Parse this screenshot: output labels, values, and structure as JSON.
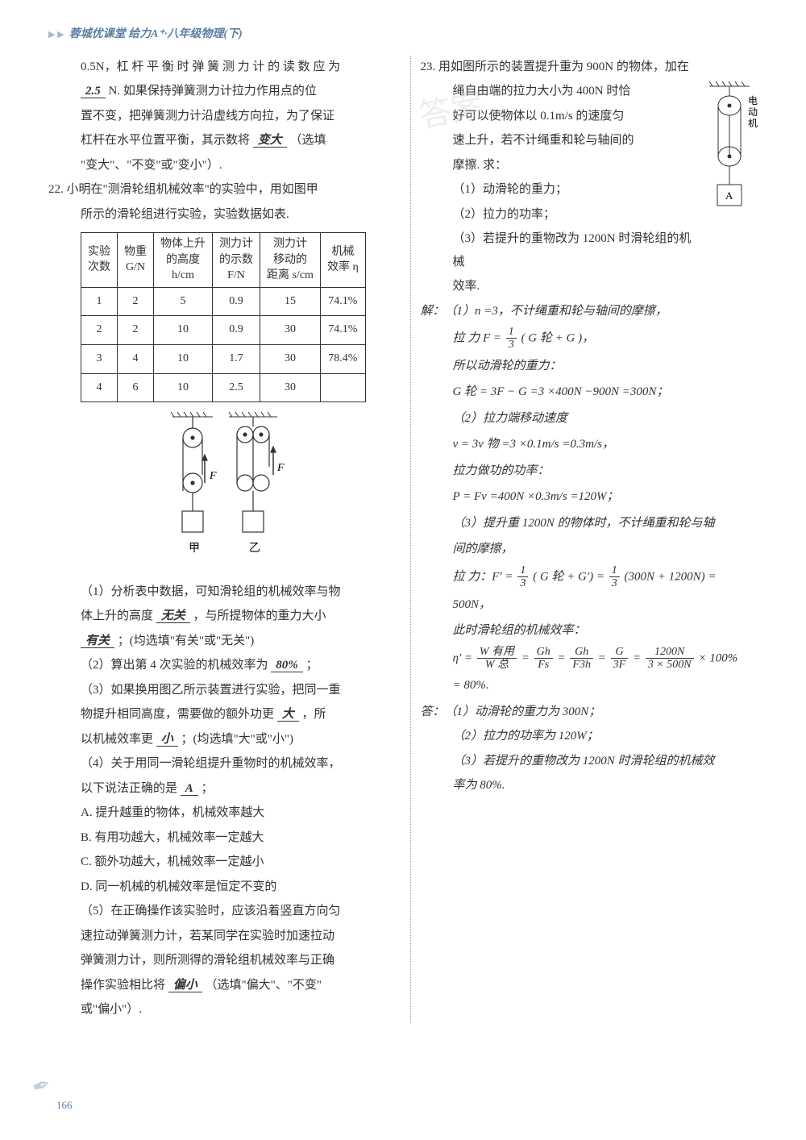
{
  "header": {
    "arrows": "▶ ▶",
    "title": "蓉城优课堂 给力A⁺·八年级物理(下)"
  },
  "q21": {
    "line1_pre": "0.5N，杠 杆 平 衡 时 弹 簧 测 力 计 的 读 数 应 为",
    "blank1": "2.5",
    "line1_post": "N. 如果保持弹簧测力计拉力作用点的位",
    "line2": "置不变，把弹簧测力计沿虚线方向拉，为了保证",
    "line3_pre": "杠杆在水平位置平衡，其示数将",
    "blank2": "变大",
    "line3_post": "（选填",
    "line4": "\"变大\"、\"不变\"或\"变小\"）."
  },
  "q22": {
    "num": "22.",
    "intro1": "小明在\"测滑轮组机械效率\"的实验中，用如图甲",
    "intro2": "所示的滑轮组进行实验，实验数据如表.",
    "table": {
      "headers": [
        "实验\n次数",
        "物重\nG/N",
        "物体上升\n的高度\nh/cm",
        "测力计\n的示数\nF/N",
        "测力计\n移动的\n距离 s/cm",
        "机械\n效率 η"
      ],
      "rows": [
        [
          "1",
          "2",
          "5",
          "0.9",
          "15",
          "74.1%"
        ],
        [
          "2",
          "2",
          "10",
          "0.9",
          "30",
          "74.1%"
        ],
        [
          "3",
          "4",
          "10",
          "1.7",
          "30",
          "78.4%"
        ],
        [
          "4",
          "6",
          "10",
          "2.5",
          "30",
          ""
        ]
      ]
    },
    "diagram_labels": {
      "F": "F",
      "jia": "甲",
      "yi": "乙"
    },
    "p1_pre": "（1）分析表中数据，可知滑轮组的机械效率与物",
    "p1_mid": "体上升的高度",
    "p1_blank1": "无关",
    "p1_mid2": "，与所提物体的重力大小",
    "p1_blank2": "有关",
    "p1_post": "；(均选填\"有关\"或\"无关\")",
    "p2_pre": "（2）算出第 4 次实验的机械效率为",
    "p2_blank": "80%",
    "p2_post": "；",
    "p3_pre": "（3）如果换用图乙所示装置进行实验，把同一重",
    "p3_mid": "物提升相同高度，需要做的额外功更",
    "p3_blank1": "大",
    "p3_mid2": "，所",
    "p3_mid3": "以机械效率更",
    "p3_blank2": "小",
    "p3_post": "；(均选填\"大\"或\"小\")",
    "p4_pre": "（4）关于用同一滑轮组提升重物时的机械效率，",
    "p4_mid": "以下说法正确的是",
    "p4_blank": "A",
    "p4_post": "；",
    "optA": "A. 提升越重的物体，机械效率越大",
    "optB": "B. 有用功越大，机械效率一定越大",
    "optC": "C. 额外功越大，机械效率一定越小",
    "optD": "D. 同一机械的机械效率是恒定不变的",
    "p5_1": "（5）在正确操作该实验时，应该沿着竖直方向匀",
    "p5_2": "速拉动弹簧测力计，若某同学在实验时加速拉动",
    "p5_3": "弹簧测力计，则所测得的滑轮组机械效率与正确",
    "p5_4pre": "操作实验相比将",
    "p5_blank": "偏小",
    "p5_4post": "（选填\"偏大\"、\"不变\"",
    "p5_5": "或\"偏小\"）."
  },
  "q23": {
    "num": "23.",
    "intro1": "用如图所示的装置提升重为 900N 的物体，加在",
    "intro2": "绳自由端的拉力大小为 400N 时恰",
    "intro3": "好可以使物体以 0.1m/s 的速度匀",
    "intro4": "速上升，若不计绳重和轮与轴间的",
    "intro5": "摩擦. 求：",
    "label_motor": "电动机",
    "label_A": "A",
    "sub1": "（1）动滑轮的重力；",
    "sub2": "（2）拉力的功率；",
    "sub3": "（3）若提升的重物改为 1200N 时滑轮组的机械",
    "sub3b": "效率.",
    "sol_label": "解：",
    "s1": "（1）n =3，不计绳重和轮与轴间的摩擦，",
    "s2_pre": "拉 力 F =",
    "s2_frac_num": "1",
    "s2_frac_den": "3",
    "s2_post": "( G 轮 + G )，",
    "s3": "所以动滑轮的重力：",
    "s4": "G 轮 = 3F − G =3 ×400N −900N =300N；",
    "s5": "（2）拉力端移动速度",
    "s6": "v = 3v 物 =3 ×0.1m/s =0.3m/s，",
    "s7": "拉力做功的功率：",
    "s8": "P = Fv =400N ×0.3m/s =120W；",
    "s9": "（3）提升重 1200N 的物体时，不计绳重和轮与轴",
    "s9b": "间的摩擦，",
    "s10_pre": "拉 力：F′ =",
    "s10_f1n": "1",
    "s10_f1d": "3",
    "s10_mid": "( G 轮 + G′) =",
    "s10_f2n": "1",
    "s10_f2d": "3",
    "s10_post": "(300N + 1200N) =",
    "s11": "500N，",
    "s12": "此时滑轮组的机械效率：",
    "s13_pre": "η′ =",
    "s13_f1n": "W 有用",
    "s13_f1d": "W 总",
    "s13_eq1": "=",
    "s13_f2n": "Gh",
    "s13_f2d": "Fs",
    "s13_eq2": "=",
    "s13_f3n": "Gh",
    "s13_f3d": "F3h",
    "s13_eq3": "=",
    "s13_f4n": "G",
    "s13_f4d": "3F",
    "s13_eq4": "=",
    "s13_f5n": "1200N",
    "s13_f5d": "3 × 500N",
    "s13_post": "× 100%",
    "s14": "= 80%.",
    "ans_label": "答：",
    "a1": "（1）动滑轮的重力为 300N；",
    "a2": "（2）拉力的功率为 120W；",
    "a3": "（3）若提升的重物改为 1200N 时滑轮组的机械效",
    "a3b": "率为 80%."
  },
  "page_num": "166",
  "watermark": "答案"
}
